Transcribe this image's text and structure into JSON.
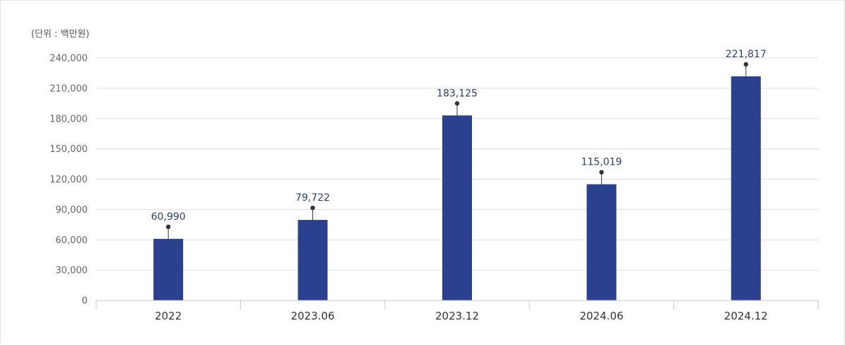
{
  "chart_data": {
    "type": "bar",
    "unit_label": "(단위 : 백만원)",
    "categories": [
      "2022",
      "2023.06",
      "2023.12",
      "2024.06",
      "2024.12"
    ],
    "values": [
      60990,
      79722,
      183125,
      115019,
      221817
    ],
    "value_labels": [
      "60,990",
      "79,722",
      "183,125",
      "115,019",
      "221,817"
    ],
    "yticks": [
      "0",
      "30,000",
      "60,000",
      "90,000",
      "120,000",
      "150,000",
      "180,000",
      "210,000",
      "240,000"
    ],
    "ylim": [
      0,
      240000
    ],
    "grid": true,
    "bar_color": "#2b4190",
    "grid_color": "#dddddd",
    "axis_color": "#c8c8c8",
    "marker_color": "#333333"
  }
}
